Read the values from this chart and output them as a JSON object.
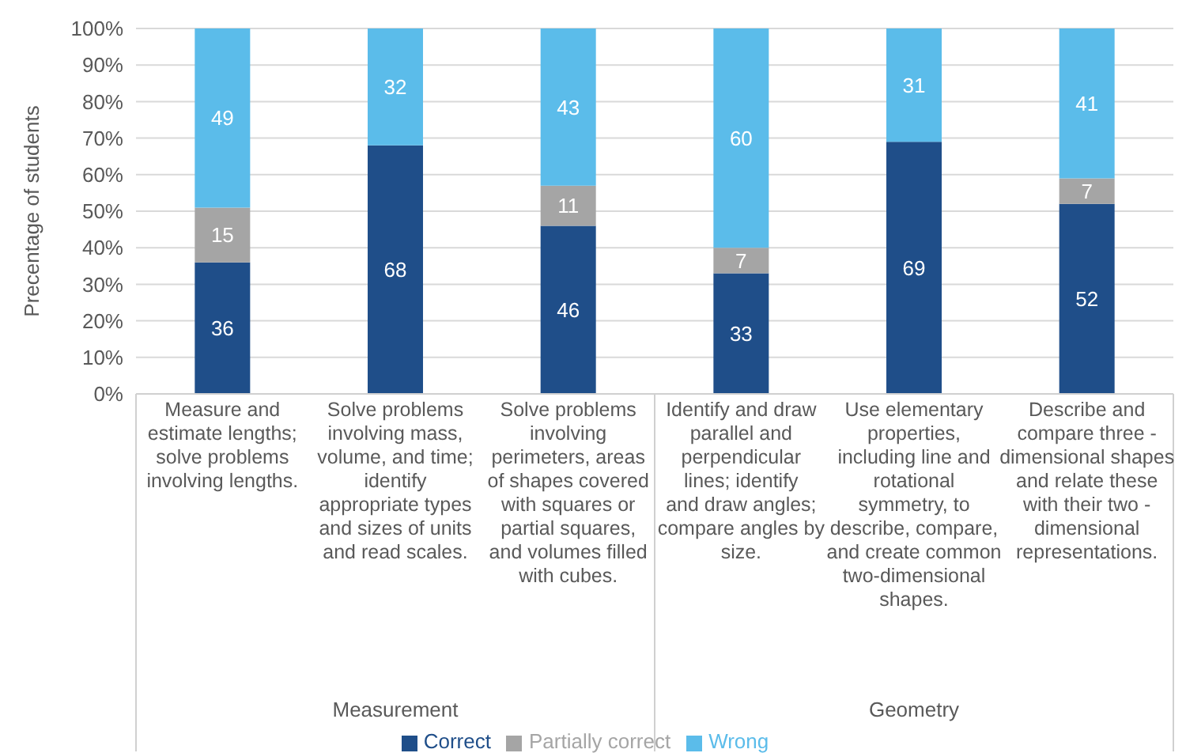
{
  "chart_data": {
    "type": "bar",
    "stacked": true,
    "ylabel": "Precentage of students",
    "categories": [
      "Measure and estimate lengths; solve problems involving lengths.",
      "Solve problems involving mass, volume, and time; identify appropriate types and sizes of units and read scales.",
      "Solve problems involving perimeters, areas of shapes covered with squares or partial squares, and volumes filled with cubes.",
      "Identify and draw parallel and perpendicular lines; identify and draw angles; compare angles by size.",
      "Use elementary properties, including line and rotational symmetry, to describe, compare, and create common two-dimensional shapes.",
      "Describe and compare three - dimensional shapes and relate these with their two - dimensional representations."
    ],
    "annotations": [
      "Measurement",
      "Geometry"
    ],
    "series": [
      {
        "name": "Correct",
        "color": "#1f4e89",
        "values": [
          36,
          68,
          46,
          33,
          69,
          52
        ]
      },
      {
        "name": "Partially correct",
        "color": "#a5a5a5",
        "values": [
          15,
          null,
          11,
          7,
          null,
          7
        ]
      },
      {
        "name": "Wrong",
        "color": "#5bbcea",
        "values": [
          49,
          32,
          43,
          60,
          31,
          41
        ]
      }
    ],
    "ylim": [
      0,
      100
    ],
    "yticks": [
      {
        "value": 0,
        "label": "0%"
      },
      {
        "value": 10,
        "label": "10%"
      },
      {
        "value": 20,
        "label": "20%"
      },
      {
        "value": 30,
        "label": "30%"
      },
      {
        "value": 40,
        "label": "40%"
      },
      {
        "value": 50,
        "label": "50%"
      },
      {
        "value": 60,
        "label": "60%"
      },
      {
        "value": 70,
        "label": "70%"
      },
      {
        "value": 80,
        "label": "80%"
      },
      {
        "value": 90,
        "label": "90%"
      },
      {
        "value": 100,
        "label": "100%"
      }
    ],
    "grid": "y",
    "legend": "bottom",
    "data_labels": true
  }
}
